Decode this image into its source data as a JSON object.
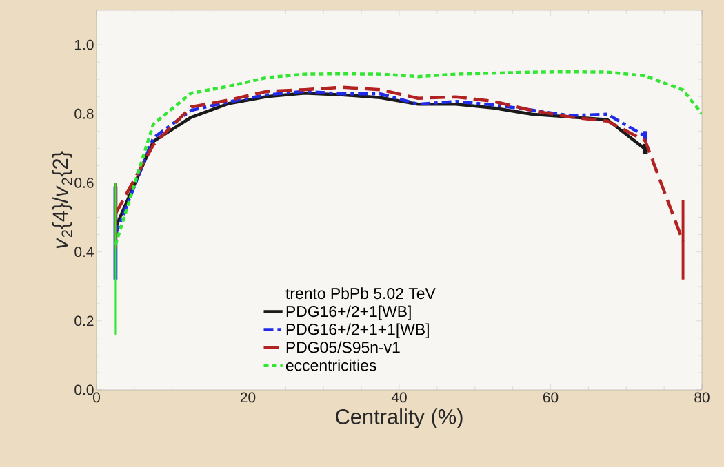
{
  "chart_data": {
    "type": "line",
    "xlabel": "Centrality (%)",
    "ylabel": "*v*$_{2}${4}/*v*$_{2}${2}",
    "legend_title": "trento PbPb 5.02 TeV",
    "x": [
      2.5,
      7.5,
      12.5,
      17.5,
      22.5,
      27.5,
      32.5,
      37.5,
      42.5,
      47.5,
      52.5,
      57.5,
      62.5,
      67.5,
      72.5,
      77.5
    ],
    "series": [
      {
        "name": "PDG16+/2+1[WB]",
        "color": "#1a1a1a",
        "line_style": "solid",
        "values": [
          0.47,
          0.72,
          0.79,
          0.83,
          0.85,
          0.86,
          0.855,
          0.847,
          0.828,
          0.828,
          0.817,
          0.799,
          0.791,
          0.783,
          0.698,
          null
        ],
        "errors": [
          null,
          null,
          null,
          null,
          null,
          null,
          null,
          null,
          null,
          null,
          null,
          null,
          null,
          null,
          0.015,
          null
        ]
      },
      {
        "name": "PDG16+/2+1+1[WB]",
        "color": "#1f2be8",
        "line_style": "dashdot",
        "values": [
          0.45,
          0.73,
          0.81,
          0.835,
          0.855,
          0.865,
          0.858,
          0.858,
          0.828,
          0.836,
          0.826,
          0.811,
          0.795,
          0.799,
          0.735,
          null
        ],
        "errors": [
          [
            0.32,
            0.59
          ],
          null,
          null,
          null,
          null,
          null,
          null,
          null,
          null,
          null,
          null,
          null,
          null,
          null,
          0.015,
          null
        ]
      },
      {
        "name": "PDG05/S95n-v1",
        "color": "#b22222",
        "line_style": "dashed",
        "values": [
          0.51,
          0.71,
          0.82,
          0.84,
          0.865,
          0.87,
          0.877,
          0.87,
          0.845,
          0.849,
          0.836,
          0.81,
          0.791,
          0.779,
          0.722,
          0.43
        ],
        "errors": [
          [
            0.41,
            0.6
          ],
          null,
          null,
          null,
          null,
          null,
          null,
          null,
          null,
          null,
          null,
          null,
          null,
          null,
          null,
          [
            0.32,
            0.55
          ]
        ]
      },
      {
        "name": "eccentricities",
        "color": "#33e633",
        "line_style": "dotted",
        "x": [
          2.5,
          7.5,
          12.5,
          17.5,
          22.5,
          27.5,
          32.5,
          37.5,
          42.5,
          47.5,
          52.5,
          57.5,
          62.5,
          67.5,
          72.5,
          77.5,
          80
        ],
        "values": [
          0.42,
          0.77,
          0.86,
          0.88,
          0.905,
          0.915,
          0.916,
          0.915,
          0.908,
          0.915,
          0.918,
          0.921,
          0.922,
          0.921,
          0.91,
          0.869,
          0.8
        ],
        "errors": [
          [
            0.16,
            0.6
          ],
          null,
          null,
          null,
          null,
          null,
          null,
          null,
          null,
          null,
          null,
          null,
          null,
          null,
          null,
          null,
          null
        ]
      }
    ],
    "xlim": [
      0,
      80
    ],
    "ylim": [
      0,
      1.1
    ],
    "xticks": [
      0,
      20,
      40,
      60,
      80
    ],
    "yticks": [
      {
        "value": 0,
        "label": "0.0"
      },
      {
        "value": 0.2,
        "label": "0.2"
      },
      {
        "value": 0.4,
        "label": "0.4"
      },
      {
        "value": 0.6,
        "label": "0.6"
      },
      {
        "value": 0.8,
        "label": "0.8"
      },
      {
        "value": 1.0,
        "label": "1.0"
      }
    ],
    "grid": false,
    "legend": "bottom"
  }
}
